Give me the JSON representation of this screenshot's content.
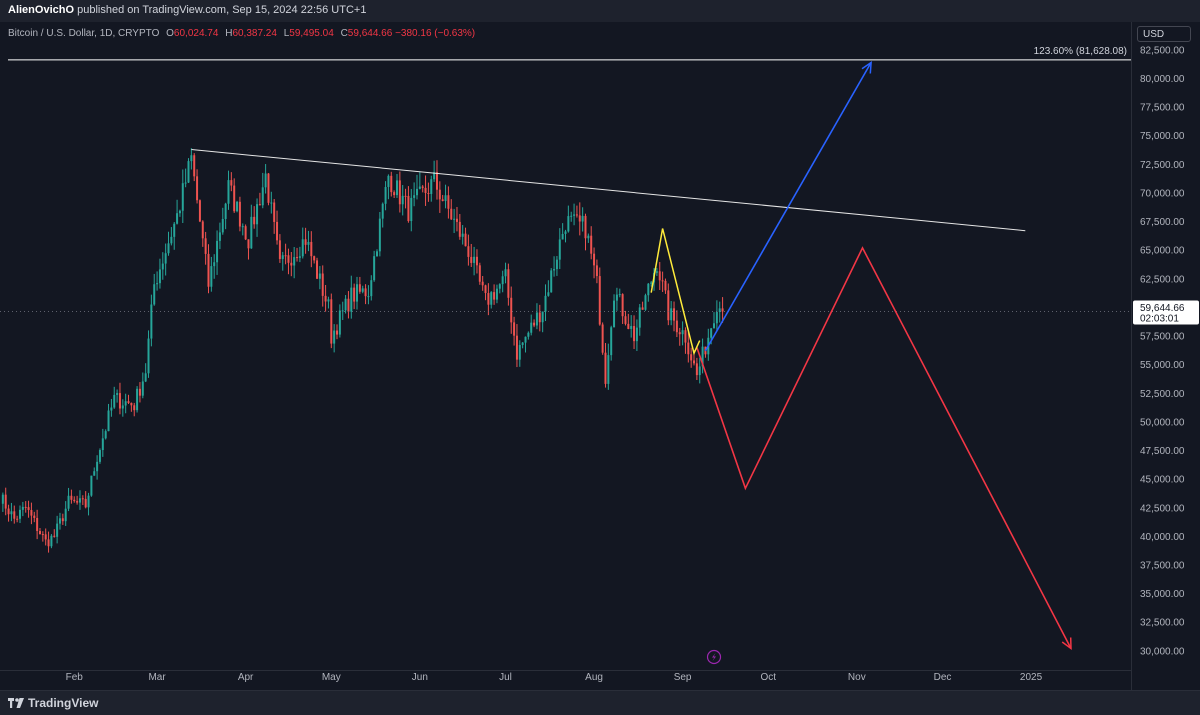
{
  "header": {
    "author": "AlienOvichO",
    "published_text": " published on TradingView.com, Sep 15, 2024 22:56 UTC+1"
  },
  "legend": {
    "symbol": "Bitcoin / U.S. Dollar, 1D, CRYPTO",
    "o_label": "O",
    "o_value": "60,024.74",
    "h_label": "H",
    "h_value": "60,387.24",
    "l_label": "L",
    "l_value": "59,495.04",
    "c_label": "C",
    "c_value": "59,644.66",
    "change": "−380.16 (−0.63%)"
  },
  "currency": "USD",
  "footer": {
    "brand": "TradingView"
  },
  "colors": {
    "background": "#131722",
    "up": "#26a69a",
    "down": "#ef5350",
    "trendline": "#e6e6e6",
    "fib_line": "#ffffff",
    "blue_projection": "#2962ff",
    "red_projection": "#f23645",
    "yellow_wave": "#ffeb3b",
    "price_label_bg": "#ffffff"
  },
  "chart_data": {
    "type": "candlestick",
    "symbol": "BTCUSD",
    "interval": "1D",
    "x_range": [
      "2024-01-06",
      "2025-02-05"
    ],
    "ylim": [
      28500,
      84500
    ],
    "y_ticks": [
      30000,
      32500,
      35000,
      37500,
      40000,
      42500,
      45000,
      47500,
      50000,
      52500,
      55000,
      57500,
      60000,
      62500,
      65000,
      67500,
      70000,
      72500,
      75000,
      77500,
      80000,
      82500
    ],
    "x_tick_labels": [
      {
        "label": "Feb",
        "date": "2024-02-01"
      },
      {
        "label": "Mar",
        "date": "2024-03-01"
      },
      {
        "label": "Apr",
        "date": "2024-04-01"
      },
      {
        "label": "May",
        "date": "2024-05-01"
      },
      {
        "label": "Jun",
        "date": "2024-06-01"
      },
      {
        "label": "Jul",
        "date": "2024-07-01"
      },
      {
        "label": "Aug",
        "date": "2024-08-01"
      },
      {
        "label": "Sep",
        "date": "2024-09-01"
      },
      {
        "label": "Oct",
        "date": "2024-10-01"
      },
      {
        "label": "Nov",
        "date": "2024-11-01"
      },
      {
        "label": "Dec",
        "date": "2024-12-01"
      },
      {
        "label": "2025",
        "date": "2025-01-01"
      }
    ],
    "close_path": [
      {
        "date": "2024-01-06",
        "close": 43500
      },
      {
        "date": "2024-01-11",
        "close": 41500
      },
      {
        "date": "2024-01-15",
        "close": 42500
      },
      {
        "date": "2024-01-22",
        "close": 39500
      },
      {
        "date": "2024-01-25",
        "close": 40000
      },
      {
        "date": "2024-01-30",
        "close": 43000
      },
      {
        "date": "2024-02-05",
        "close": 42700
      },
      {
        "date": "2024-02-09",
        "close": 47000
      },
      {
        "date": "2024-02-15",
        "close": 52000
      },
      {
        "date": "2024-02-22",
        "close": 51500
      },
      {
        "date": "2024-02-26",
        "close": 54500
      },
      {
        "date": "2024-02-29",
        "close": 62000
      },
      {
        "date": "2024-03-04",
        "close": 65000
      },
      {
        "date": "2024-03-08",
        "close": 68000
      },
      {
        "date": "2024-03-13",
        "close": 73000
      },
      {
        "date": "2024-03-19",
        "close": 62000
      },
      {
        "date": "2024-03-26",
        "close": 70500
      },
      {
        "date": "2024-04-02",
        "close": 66000
      },
      {
        "date": "2024-04-08",
        "close": 71500
      },
      {
        "date": "2024-04-13",
        "close": 63500
      },
      {
        "date": "2024-04-22",
        "close": 66000
      },
      {
        "date": "2024-04-30",
        "close": 60000
      },
      {
        "date": "2024-05-01",
        "close": 57500
      },
      {
        "date": "2024-05-08",
        "close": 61000
      },
      {
        "date": "2024-05-14",
        "close": 61500
      },
      {
        "date": "2024-05-21",
        "close": 71500
      },
      {
        "date": "2024-05-28",
        "close": 68500
      },
      {
        "date": "2024-06-06",
        "close": 71000
      },
      {
        "date": "2024-06-12",
        "close": 68000
      },
      {
        "date": "2024-06-18",
        "close": 65000
      },
      {
        "date": "2024-06-24",
        "close": 60500
      },
      {
        "date": "2024-07-01",
        "close": 62500
      },
      {
        "date": "2024-07-05",
        "close": 56000
      },
      {
        "date": "2024-07-14",
        "close": 60000
      },
      {
        "date": "2024-07-22",
        "close": 67500
      },
      {
        "date": "2024-07-29",
        "close": 67000
      },
      {
        "date": "2024-08-02",
        "close": 62000
      },
      {
        "date": "2024-08-05",
        "close": 54000
      },
      {
        "date": "2024-08-08",
        "close": 61500
      },
      {
        "date": "2024-08-15",
        "close": 57500
      },
      {
        "date": "2024-08-23",
        "close": 64000
      },
      {
        "date": "2024-08-27",
        "close": 59500
      },
      {
        "date": "2024-09-02",
        "close": 57500
      },
      {
        "date": "2024-09-06",
        "close": 54000
      },
      {
        "date": "2024-09-10",
        "close": 57500
      },
      {
        "date": "2024-09-13",
        "close": 60500
      },
      {
        "date": "2024-09-15",
        "close": 59645
      }
    ],
    "annotations": {
      "fib_level": {
        "label": "123.60% (81,628.08)",
        "price": 81628.08
      },
      "descending_trendline": [
        {
          "date": "2024-03-13",
          "price": 73800
        },
        {
          "date": "2024-12-30",
          "price": 66700
        }
      ],
      "blue_projection": [
        {
          "date": "2024-09-09",
          "price": 56200
        },
        {
          "date": "2024-11-06",
          "price": 81400
        }
      ],
      "red_projection": [
        {
          "date": "2024-09-06",
          "price": 56500
        },
        {
          "date": "2024-09-23",
          "price": 44200
        },
        {
          "date": "2024-11-03",
          "price": 65200
        },
        {
          "date": "2025-01-15",
          "price": 30200
        }
      ],
      "yellow_wave": [
        {
          "date": "2024-08-21",
          "price": 61300
        },
        {
          "date": "2024-08-25",
          "price": 66900
        },
        {
          "date": "2024-09-05",
          "price": 56000
        },
        {
          "date": "2024-09-07",
          "price": 57100
        }
      ],
      "last_price": {
        "value": "59,644.66",
        "countdown": "02:03:01",
        "price": 59644.66
      }
    }
  }
}
